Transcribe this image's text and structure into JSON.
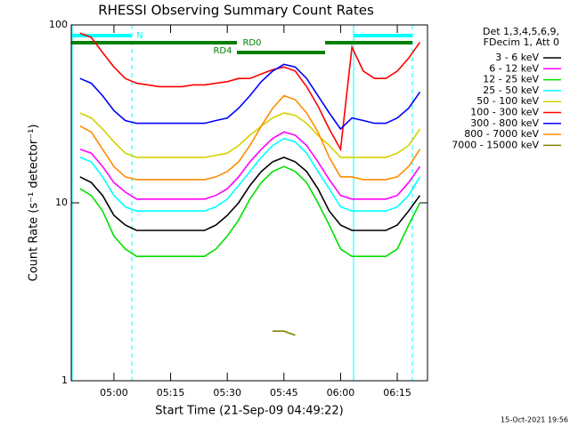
{
  "chart_data": {
    "type": "line",
    "title": "RHESSI Observing Summary Count Rates",
    "xlabel": "Start Time (21-Sep-09 04:49:22)",
    "ylabel": "Count Rate (s⁻¹ detector⁻¹)",
    "legend_title": [
      "Det 1,3,4,5,6,9,",
      "FDecim 1, Att 0"
    ],
    "legend": "right",
    "ylog": true,
    "annotations": [
      "N",
      "RD4",
      "RD0"
    ],
    "footer": "15-Oct-2021 19:56",
    "x": [
      291,
      294,
      297,
      300,
      303,
      306,
      309,
      312,
      315,
      318,
      321,
      324,
      327,
      330,
      333,
      336,
      339,
      342,
      345,
      348,
      351,
      354,
      357,
      360,
      363,
      366,
      369,
      372,
      375,
      378,
      381
    ],
    "xlim": [
      288.7,
      383.0
    ],
    "xticks": [
      {
        "value": 300,
        "label": "05:00"
      },
      {
        "value": 315,
        "label": "05:15"
      },
      {
        "value": 330,
        "label": "05:30"
      },
      {
        "value": 345,
        "label": "05:45"
      },
      {
        "value": 360,
        "label": "06:00"
      },
      {
        "value": 375,
        "label": "06:15"
      }
    ],
    "ylim": [
      1,
      100
    ],
    "yticks": [
      1,
      10,
      100
    ],
    "series": [
      {
        "name": "3 - 6 keV",
        "color": "#000000",
        "values": [
          14,
          13,
          11,
          8.5,
          7.5,
          7,
          7,
          7,
          7,
          7,
          7,
          7,
          7.5,
          8.5,
          10,
          12.5,
          15,
          17,
          18,
          17,
          15,
          12,
          9,
          7.5,
          7,
          7,
          7,
          7,
          7.5,
          9,
          11
        ]
      },
      {
        "name": "6 - 12 keV",
        "color": "#ff00ff",
        "values": [
          20,
          19,
          16,
          13,
          11.5,
          10.5,
          10.5,
          10.5,
          10.5,
          10.5,
          10.5,
          10.5,
          11,
          12,
          14,
          17,
          20,
          23,
          25,
          24,
          21,
          17,
          13.5,
          11,
          10.5,
          10.5,
          10.5,
          10.5,
          11,
          13,
          16
        ]
      },
      {
        "name": "12 - 25 keV",
        "color": "#00e000",
        "values": [
          12,
          11,
          9,
          6.5,
          5.5,
          5,
          5,
          5,
          5,
          5,
          5,
          5,
          5.5,
          6.5,
          8,
          10.5,
          13,
          15,
          16,
          15,
          13,
          10,
          7.5,
          5.5,
          5,
          5,
          5,
          5,
          5.5,
          7.5,
          10
        ]
      },
      {
        "name": "25 - 50 keV",
        "color": "#00ffff",
        "values": [
          18,
          17,
          14,
          11,
          9.5,
          9,
          9,
          9,
          9,
          9,
          9,
          9,
          9.5,
          10.5,
          12.5,
          15,
          18,
          21,
          23,
          22,
          19,
          15,
          12,
          9.5,
          9,
          9,
          9,
          9,
          9.5,
          11,
          14
        ]
      },
      {
        "name": "50 - 100 keV",
        "color": "#d2d200",
        "values": [
          32,
          30,
          26,
          22,
          19,
          18,
          18,
          18,
          18,
          18,
          18,
          18,
          18.5,
          19,
          21,
          24,
          27,
          30,
          32,
          31,
          28,
          24,
          21,
          18,
          18,
          18,
          18,
          18,
          19,
          21,
          26
        ]
      },
      {
        "name": "100 - 300 keV",
        "color": "#ff0000",
        "values": [
          90,
          85,
          70,
          58,
          50,
          47,
          46,
          45,
          45,
          45,
          46,
          46,
          47,
          48,
          50,
          50,
          53,
          56,
          58,
          55,
          45,
          35,
          26,
          20,
          75,
          55,
          50,
          50,
          55,
          65,
          80
        ]
      },
      {
        "name": "300 - 800 keV",
        "color": "#0000ff",
        "values": [
          50,
          47,
          40,
          33,
          29,
          28,
          28,
          28,
          28,
          28,
          28,
          28,
          29,
          30,
          34,
          40,
          48,
          55,
          60,
          58,
          50,
          40,
          32,
          26,
          30,
          29,
          28,
          28,
          30,
          34,
          42
        ]
      },
      {
        "name": "800 - 7000 keV",
        "color": "#ff8c00",
        "values": [
          27,
          25,
          20,
          16,
          14,
          13.5,
          13.5,
          13.5,
          13.5,
          13.5,
          13.5,
          13.5,
          14,
          15,
          17,
          21,
          27,
          34,
          40,
          38,
          32,
          25,
          18,
          14,
          14,
          13.5,
          13.5,
          13.5,
          14,
          16,
          20
        ]
      },
      {
        "name": "7000 - 15000 keV",
        "color": "#808000",
        "values": [
          null,
          null,
          null,
          null,
          null,
          null,
          null,
          null,
          null,
          null,
          null,
          null,
          null,
          null,
          null,
          null,
          null,
          1.9,
          1.9,
          1.8,
          null,
          null,
          null,
          null,
          null,
          null,
          null,
          null,
          null,
          null,
          null
        ]
      }
    ]
  }
}
